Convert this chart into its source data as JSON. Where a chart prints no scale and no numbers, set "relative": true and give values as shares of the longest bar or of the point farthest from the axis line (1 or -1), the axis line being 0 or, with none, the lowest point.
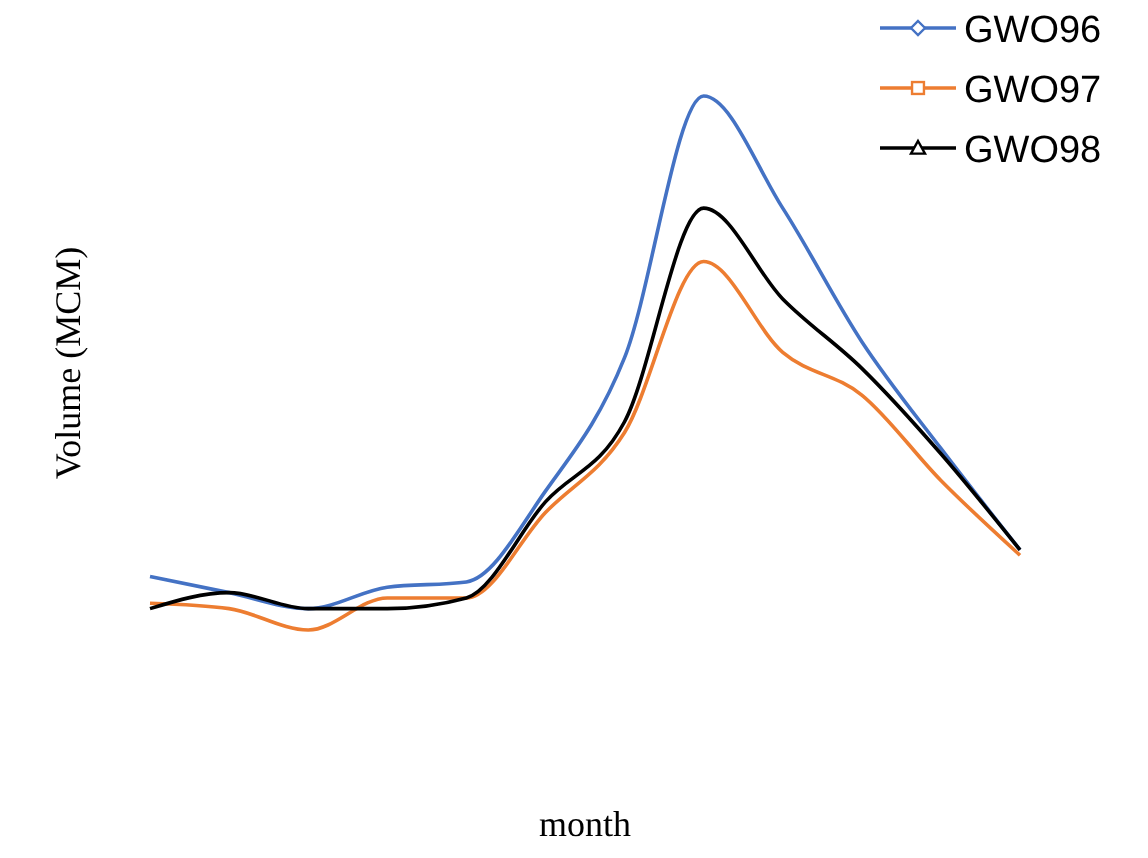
{
  "chart_data": {
    "type": "line",
    "relative": true,
    "xlabel": "month",
    "ylabel": "Volume (MCM)",
    "legend": "top right",
    "line_style": "solid",
    "categories": [
      null,
      null,
      null,
      null,
      null,
      null,
      null,
      null,
      null,
      null,
      null,
      null
    ],
    "series": [
      {
        "name": "GWO96",
        "color": "#4472c4",
        "values": [
          0.1,
          0.07,
          0.04,
          0.08,
          0.09,
          0.26,
          0.51,
          1,
          0.79,
          0.54,
          0.34,
          0.15
        ]
      },
      {
        "name": "GWO97",
        "color": "#ed7d31",
        "values": [
          0.05,
          0.04,
          0,
          0.06,
          0.06,
          0.22,
          0.37,
          0.69,
          0.52,
          0.44,
          0.28,
          0.14
        ]
      },
      {
        "name": "GWO98",
        "color": "#000000",
        "values": [
          0.04,
          0.07,
          0.04,
          0.04,
          0.06,
          0.24,
          0.39,
          0.79,
          0.62,
          0.49,
          0.33,
          0.15
        ]
      }
    ]
  }
}
